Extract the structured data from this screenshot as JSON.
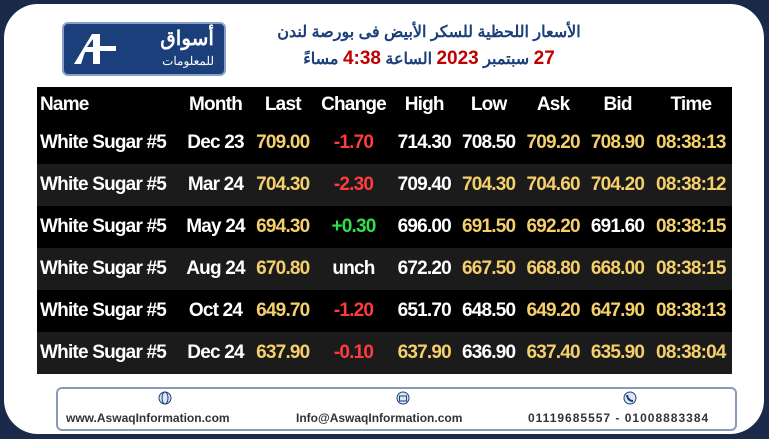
{
  "header": {
    "logo": {
      "name": "أسواق",
      "subtitle": "للمعلومات"
    },
    "title": "الأسعار اللحظية للسكر الأبيض فى بورصة لندن",
    "date_parts": [
      "27",
      "سبتمبر",
      "2023",
      "الساعة",
      "4:38",
      "مساءً"
    ]
  },
  "table": {
    "columns": [
      "Name",
      "Month",
      "Last",
      "Change",
      "High",
      "Low",
      "Ask",
      "Bid",
      "Time"
    ],
    "rows": [
      [
        "White Sugar #5",
        "Dec 23",
        "709.00",
        "-1.70",
        "714.30",
        "708.50",
        "709.20",
        "708.90",
        "08:38:13"
      ],
      [
        "White Sugar #5",
        "Mar 24",
        "704.30",
        "-2.30",
        "709.40",
        "704.30",
        "704.60",
        "704.20",
        "08:38:12"
      ],
      [
        "White Sugar #5",
        "May 24",
        "694.30",
        "+0.30",
        "696.00",
        "691.50",
        "692.20",
        "691.60",
        "08:38:15"
      ],
      [
        "White Sugar #5",
        "Aug 24",
        "670.80",
        "unch",
        "672.20",
        "667.50",
        "668.80",
        "668.00",
        "08:38:15"
      ],
      [
        "White Sugar #5",
        "Oct 24",
        "649.70",
        "-1.20",
        "651.70",
        "648.50",
        "649.20",
        "647.90",
        "08:38:13"
      ],
      [
        "White Sugar #5",
        "Dec 24",
        "637.90",
        "-0.10",
        "637.90",
        "636.90",
        "637.40",
        "635.90",
        "08:38:04"
      ]
    ]
  },
  "footer": {
    "website": "www.AswaqInformation.com",
    "email": "Info@AswaqInformation.com",
    "phone": "01119685557 - 01008883384"
  }
}
